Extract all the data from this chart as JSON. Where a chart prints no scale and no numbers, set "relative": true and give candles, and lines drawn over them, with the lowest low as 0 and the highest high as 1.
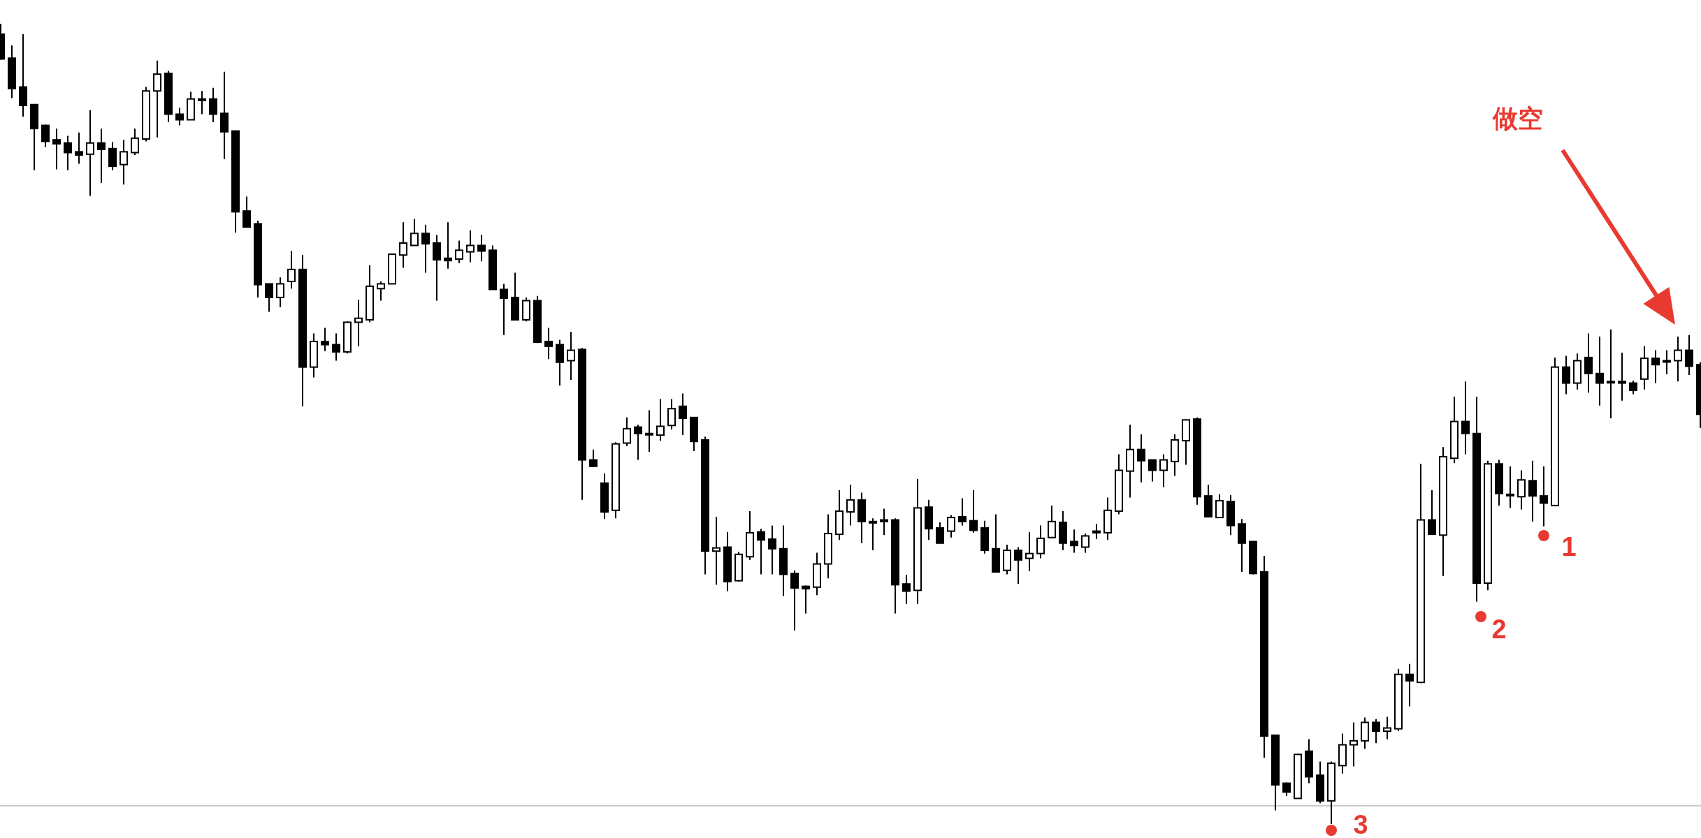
{
  "chart_data": {
    "type": "candlestick",
    "relative": true,
    "color": "#000000",
    "categories": [
      null,
      null,
      null,
      null,
      null,
      null,
      null,
      null,
      null,
      null,
      null,
      null,
      null,
      null,
      null,
      null,
      null,
      null,
      null,
      null,
      null,
      null,
      null,
      null,
      null,
      null,
      null,
      null,
      null,
      null,
      null,
      null,
      null,
      null,
      null,
      null,
      null,
      null,
      null,
      null,
      null,
      null,
      null,
      null,
      null,
      null,
      null,
      null,
      null,
      null,
      null,
      null,
      null,
      null,
      null,
      null,
      null,
      null,
      null,
      null,
      null,
      null,
      null,
      null,
      null,
      null,
      null,
      null,
      null,
      null,
      null,
      null,
      null,
      null,
      null,
      null,
      null,
      null,
      null,
      null,
      null,
      null,
      null,
      null,
      null,
      null,
      null,
      null,
      null,
      null,
      null,
      null,
      null,
      null,
      null,
      null,
      null,
      null,
      null,
      null,
      null,
      null,
      null,
      null,
      null,
      null,
      null,
      null,
      null,
      null,
      null,
      null,
      null,
      null,
      null,
      null,
      null,
      null,
      null,
      null,
      null,
      null,
      null,
      null,
      null,
      null,
      null,
      null,
      null,
      null,
      null,
      null,
      null,
      null,
      null,
      null,
      null,
      null,
      null,
      null,
      null,
      null,
      null,
      null,
      null,
      null,
      null,
      null,
      null,
      null,
      null,
      null,
      null
    ],
    "ohlc": [
      [
        0.987,
        1.0,
        0.955,
        0.956
      ],
      [
        0.957,
        0.973,
        0.907,
        0.919
      ],
      [
        0.921,
        0.987,
        0.884,
        0.898
      ],
      [
        0.899,
        0.899,
        0.817,
        0.869
      ],
      [
        0.873,
        0.874,
        0.846,
        0.853
      ],
      [
        0.855,
        0.869,
        0.818,
        0.85
      ],
      [
        0.851,
        0.86,
        0.817,
        0.839
      ],
      [
        0.84,
        0.864,
        0.825,
        0.836
      ],
      [
        0.837,
        0.892,
        0.785,
        0.851
      ],
      [
        0.851,
        0.869,
        0.801,
        0.843
      ],
      [
        0.844,
        0.852,
        0.817,
        0.822
      ],
      [
        0.824,
        0.855,
        0.799,
        0.84
      ],
      [
        0.839,
        0.869,
        0.836,
        0.857
      ],
      [
        0.856,
        0.921,
        0.853,
        0.916
      ],
      [
        0.916,
        0.954,
        0.858,
        0.937
      ],
      [
        0.938,
        0.941,
        0.877,
        0.887
      ],
      [
        0.887,
        0.895,
        0.873,
        0.88
      ],
      [
        0.88,
        0.915,
        0.88,
        0.906
      ],
      [
        0.906,
        0.916,
        0.887,
        0.906
      ],
      [
        0.906,
        0.92,
        0.877,
        0.887
      ],
      [
        0.888,
        0.94,
        0.831,
        0.865
      ],
      [
        0.866,
        0.866,
        0.739,
        0.765
      ],
      [
        0.766,
        0.784,
        0.746,
        0.746
      ],
      [
        0.75,
        0.754,
        0.658,
        0.674
      ],
      [
        0.675,
        0.675,
        0.64,
        0.658
      ],
      [
        0.658,
        0.683,
        0.646,
        0.675
      ],
      [
        0.678,
        0.716,
        0.669,
        0.693
      ],
      [
        0.693,
        0.711,
        0.522,
        0.571
      ],
      [
        0.571,
        0.613,
        0.558,
        0.603
      ],
      [
        0.603,
        0.62,
        0.591,
        0.599
      ],
      [
        0.599,
        0.613,
        0.579,
        0.59
      ],
      [
        0.59,
        0.628,
        0.588,
        0.627
      ],
      [
        0.627,
        0.655,
        0.597,
        0.632
      ],
      [
        0.63,
        0.698,
        0.627,
        0.672
      ],
      [
        0.669,
        0.678,
        0.654,
        0.675
      ],
      [
        0.675,
        0.713,
        0.675,
        0.712
      ],
      [
        0.711,
        0.752,
        0.695,
        0.726
      ],
      [
        0.723,
        0.756,
        0.723,
        0.738
      ],
      [
        0.738,
        0.749,
        0.689,
        0.725
      ],
      [
        0.726,
        0.736,
        0.654,
        0.705
      ],
      [
        0.707,
        0.752,
        0.694,
        0.704
      ],
      [
        0.706,
        0.729,
        0.701,
        0.717
      ],
      [
        0.715,
        0.742,
        0.702,
        0.723
      ],
      [
        0.723,
        0.736,
        0.703,
        0.716
      ],
      [
        0.717,
        0.723,
        0.668,
        0.668
      ],
      [
        0.668,
        0.675,
        0.611,
        0.657
      ],
      [
        0.658,
        0.689,
        0.63,
        0.63
      ],
      [
        0.63,
        0.658,
        0.628,
        0.654
      ],
      [
        0.654,
        0.66,
        0.601,
        0.602
      ],
      [
        0.603,
        0.62,
        0.581,
        0.597
      ],
      [
        0.599,
        0.605,
        0.548,
        0.577
      ],
      [
        0.579,
        0.615,
        0.555,
        0.592
      ],
      [
        0.593,
        0.595,
        0.405,
        0.455
      ],
      [
        0.455,
        0.468,
        0.446,
        0.447
      ],
      [
        0.426,
        0.438,
        0.381,
        0.39
      ],
      [
        0.392,
        0.477,
        0.382,
        0.475
      ],
      [
        0.476,
        0.508,
        0.472,
        0.494
      ],
      [
        0.496,
        0.499,
        0.455,
        0.488
      ],
      [
        0.488,
        0.517,
        0.465,
        0.488
      ],
      [
        0.486,
        0.531,
        0.479,
        0.497
      ],
      [
        0.498,
        0.531,
        0.493,
        0.519
      ],
      [
        0.522,
        0.538,
        0.486,
        0.507
      ],
      [
        0.508,
        0.508,
        0.466,
        0.478
      ],
      [
        0.48,
        0.484,
        0.312,
        0.341
      ],
      [
        0.341,
        0.384,
        0.299,
        0.345
      ],
      [
        0.346,
        0.365,
        0.291,
        0.303
      ],
      [
        0.304,
        0.34,
        0.303,
        0.337
      ],
      [
        0.334,
        0.391,
        0.33,
        0.364
      ],
      [
        0.365,
        0.369,
        0.312,
        0.355
      ],
      [
        0.356,
        0.373,
        0.312,
        0.344
      ],
      [
        0.344,
        0.373,
        0.285,
        0.312
      ],
      [
        0.313,
        0.317,
        0.242,
        0.295
      ],
      [
        0.297,
        0.298,
        0.263,
        0.294
      ],
      [
        0.296,
        0.339,
        0.286,
        0.325
      ],
      [
        0.325,
        0.387,
        0.307,
        0.363
      ],
      [
        0.362,
        0.417,
        0.355,
        0.391
      ],
      [
        0.39,
        0.424,
        0.373,
        0.405
      ],
      [
        0.405,
        0.414,
        0.351,
        0.378
      ],
      [
        0.378,
        0.382,
        0.342,
        0.378
      ],
      [
        0.38,
        0.394,
        0.361,
        0.378
      ],
      [
        0.38,
        0.382,
        0.263,
        0.299
      ],
      [
        0.3,
        0.311,
        0.275,
        0.291
      ],
      [
        0.292,
        0.431,
        0.275,
        0.395
      ],
      [
        0.396,
        0.405,
        0.355,
        0.369
      ],
      [
        0.37,
        0.377,
        0.351,
        0.351
      ],
      [
        0.366,
        0.386,
        0.358,
        0.383
      ],
      [
        0.384,
        0.407,
        0.373,
        0.378
      ],
      [
        0.379,
        0.417,
        0.364,
        0.367
      ],
      [
        0.37,
        0.379,
        0.338,
        0.342
      ],
      [
        0.344,
        0.387,
        0.315,
        0.315
      ],
      [
        0.317,
        0.349,
        0.312,
        0.342
      ],
      [
        0.342,
        0.346,
        0.3,
        0.33
      ],
      [
        0.332,
        0.365,
        0.316,
        0.338
      ],
      [
        0.338,
        0.373,
        0.332,
        0.357
      ],
      [
        0.358,
        0.398,
        0.357,
        0.378
      ],
      [
        0.377,
        0.391,
        0.342,
        0.351
      ],
      [
        0.353,
        0.368,
        0.339,
        0.348
      ],
      [
        0.346,
        0.363,
        0.339,
        0.36
      ],
      [
        0.366,
        0.375,
        0.356,
        0.364
      ],
      [
        0.364,
        0.408,
        0.355,
        0.392
      ],
      [
        0.391,
        0.462,
        0.387,
        0.442
      ],
      [
        0.441,
        0.499,
        0.408,
        0.468
      ],
      [
        0.468,
        0.487,
        0.427,
        0.454
      ],
      [
        0.455,
        0.455,
        0.428,
        0.442
      ],
      [
        0.442,
        0.462,
        0.421,
        0.455
      ],
      [
        0.453,
        0.487,
        0.435,
        0.48
      ],
      [
        0.479,
        0.505,
        0.449,
        0.505
      ],
      [
        0.506,
        0.508,
        0.399,
        0.409
      ],
      [
        0.41,
        0.424,
        0.383,
        0.384
      ],
      [
        0.383,
        0.412,
        0.383,
        0.404
      ],
      [
        0.403,
        0.411,
        0.361,
        0.373
      ],
      [
        0.375,
        0.381,
        0.315,
        0.351
      ],
      [
        0.353,
        0.353,
        0.312,
        0.313
      ],
      [
        0.315,
        0.335,
        0.083,
        0.11
      ],
      [
        0.111,
        0.111,
        0.017,
        0.049
      ],
      [
        0.051,
        0.052,
        0.035,
        0.04
      ],
      [
        0.032,
        0.088,
        0.032,
        0.087
      ],
      [
        0.091,
        0.106,
        0.051,
        0.059
      ],
      [
        0.061,
        0.078,
        0.026,
        0.029
      ],
      [
        0.029,
        0.078,
        0.0,
        0.076
      ],
      [
        0.073,
        0.113,
        0.063,
        0.099
      ],
      [
        0.099,
        0.127,
        0.072,
        0.104
      ],
      [
        0.104,
        0.133,
        0.094,
        0.127
      ],
      [
        0.127,
        0.131,
        0.101,
        0.116
      ],
      [
        0.116,
        0.134,
        0.106,
        0.12
      ],
      [
        0.119,
        0.194,
        0.116,
        0.187
      ],
      [
        0.187,
        0.2,
        0.147,
        0.179
      ],
      [
        0.177,
        0.45,
        0.176,
        0.38
      ],
      [
        0.38,
        0.417,
        0.362,
        0.362
      ],
      [
        0.361,
        0.471,
        0.31,
        0.459
      ],
      [
        0.457,
        0.534,
        0.451,
        0.503
      ],
      [
        0.503,
        0.553,
        0.462,
        0.488
      ],
      [
        0.488,
        0.534,
        0.278,
        0.301
      ],
      [
        0.301,
        0.454,
        0.292,
        0.45
      ],
      [
        0.45,
        0.455,
        0.398,
        0.413
      ],
      [
        0.412,
        0.447,
        0.395,
        0.412
      ],
      [
        0.409,
        0.442,
        0.393,
        0.43
      ],
      [
        0.429,
        0.454,
        0.378,
        0.41
      ],
      [
        0.41,
        0.447,
        0.372,
        0.401
      ],
      [
        0.398,
        0.583,
        0.398,
        0.571
      ],
      [
        0.571,
        0.585,
        0.537,
        0.551
      ],
      [
        0.551,
        0.588,
        0.543,
        0.579
      ],
      [
        0.583,
        0.613,
        0.539,
        0.563
      ],
      [
        0.563,
        0.609,
        0.523,
        0.551
      ],
      [
        0.553,
        0.618,
        0.507,
        0.553
      ],
      [
        0.553,
        0.589,
        0.529,
        0.551
      ],
      [
        0.551,
        0.554,
        0.537,
        0.542
      ],
      [
        0.556,
        0.597,
        0.543,
        0.582
      ],
      [
        0.582,
        0.592,
        0.551,
        0.574
      ],
      [
        0.579,
        0.592,
        0.562,
        0.579
      ],
      [
        0.579,
        0.609,
        0.553,
        0.592
      ],
      [
        0.592,
        0.611,
        0.561,
        0.572
      ],
      [
        0.574,
        0.577,
        0.495,
        0.512
      ]
    ],
    "ref_lines": [
      {
        "axis": "y",
        "value": 0.023,
        "color": "#c8c8c8"
      }
    ],
    "annotations": [
      "做空",
      "1",
      "2",
      "3"
    ]
  }
}
